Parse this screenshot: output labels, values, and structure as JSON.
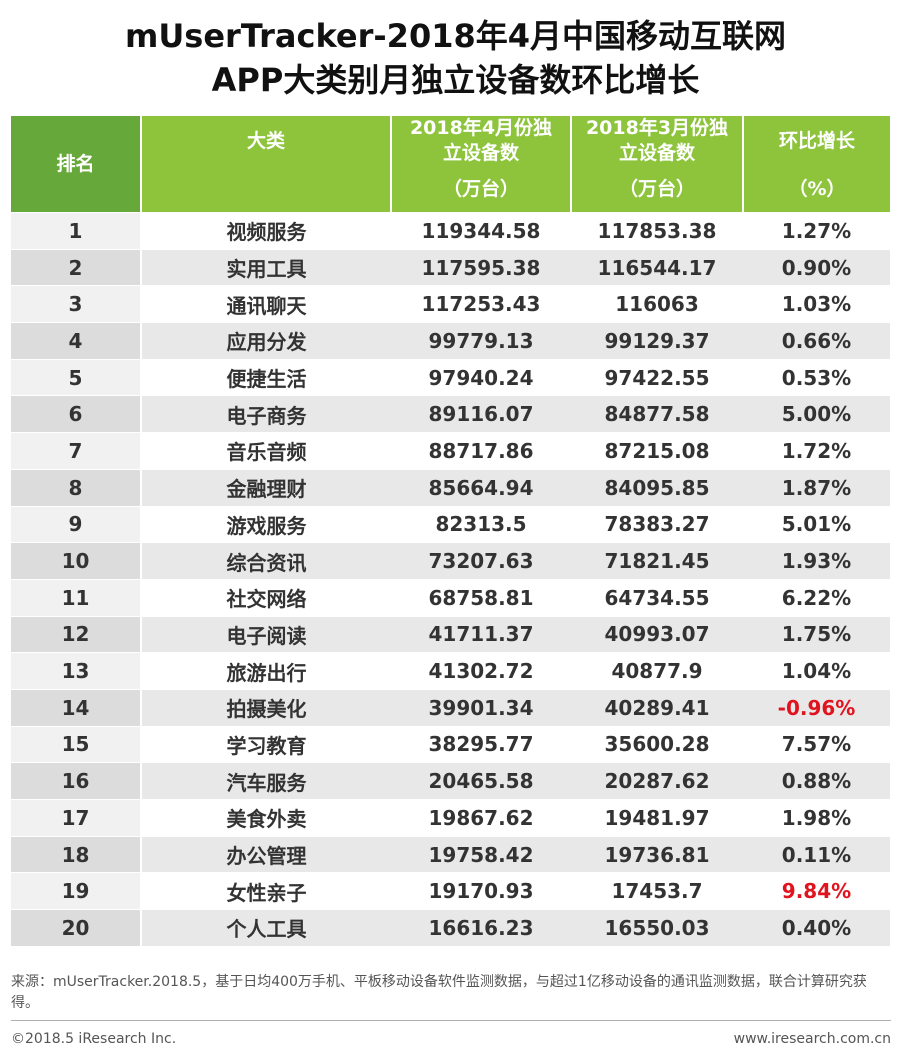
{
  "title_line1": "mUserTracker-2018年4月中国移动互联网",
  "title_line2": "APP大类别月独立设备数环比增长",
  "headers": {
    "rank": "排名",
    "category": "大类",
    "apr_line1": "2018年4月份独",
    "apr_line2": "立设备数",
    "mar_line1": "2018年3月份独",
    "mar_line2": "立设备数",
    "growth": "环比增长",
    "unit_devices_apr": "（万台）",
    "unit_devices_mar": "（万台）",
    "unit_growth": "（%）"
  },
  "rows": [
    {
      "rank": "1",
      "category": "视频服务",
      "apr": "119344.58",
      "mar": "117853.38",
      "growth": "1.27%"
    },
    {
      "rank": "2",
      "category": "实用工具",
      "apr": "117595.38",
      "mar": "116544.17",
      "growth": "0.90%"
    },
    {
      "rank": "3",
      "category": "通讯聊天",
      "apr": "117253.43",
      "mar": "116063",
      "growth": "1.03%"
    },
    {
      "rank": "4",
      "category": "应用分发",
      "apr": "99779.13",
      "mar": "99129.37",
      "growth": "0.66%"
    },
    {
      "rank": "5",
      "category": "便捷生活",
      "apr": "97940.24",
      "mar": "97422.55",
      "growth": "0.53%"
    },
    {
      "rank": "6",
      "category": "电子商务",
      "apr": "89116.07",
      "mar": "84877.58",
      "growth": "5.00%"
    },
    {
      "rank": "7",
      "category": "音乐音频",
      "apr": "88717.86",
      "mar": "87215.08",
      "growth": "1.72%"
    },
    {
      "rank": "8",
      "category": "金融理财",
      "apr": "85664.94",
      "mar": "84095.85",
      "growth": "1.87%"
    },
    {
      "rank": "9",
      "category": "游戏服务",
      "apr": "82313.5",
      "mar": "78383.27",
      "growth": "5.01%"
    },
    {
      "rank": "10",
      "category": "综合资讯",
      "apr": "73207.63",
      "mar": "71821.45",
      "growth": "1.93%"
    },
    {
      "rank": "11",
      "category": "社交网络",
      "apr": "68758.81",
      "mar": "64734.55",
      "growth": "6.22%"
    },
    {
      "rank": "12",
      "category": "电子阅读",
      "apr": "41711.37",
      "mar": "40993.07",
      "growth": "1.75%"
    },
    {
      "rank": "13",
      "category": "旅游出行",
      "apr": "41302.72",
      "mar": "40877.9",
      "growth": "1.04%"
    },
    {
      "rank": "14",
      "category": "拍摄美化",
      "apr": "39901.34",
      "mar": "40289.41",
      "growth": "-0.96%"
    },
    {
      "rank": "15",
      "category": "学习教育",
      "apr": "38295.77",
      "mar": "35600.28",
      "growth": "7.57%"
    },
    {
      "rank": "16",
      "category": "汽车服务",
      "apr": "20465.58",
      "mar": "20287.62",
      "growth": "0.88%"
    },
    {
      "rank": "17",
      "category": "美食外卖",
      "apr": "19867.62",
      "mar": "19481.97",
      "growth": "1.98%"
    },
    {
      "rank": "18",
      "category": "办公管理",
      "apr": "19758.42",
      "mar": "19736.81",
      "growth": "0.11%"
    },
    {
      "rank": "19",
      "category": "女性亲子",
      "apr": "19170.93",
      "mar": "17453.7",
      "growth": "9.84%"
    },
    {
      "rank": "20",
      "category": "个人工具",
      "apr": "16616.23",
      "mar": "16550.03",
      "growth": "0.40%"
    }
  ],
  "highlight_color": "#e0141e",
  "highlighted_ranks": [
    "14",
    "19"
  ],
  "source_note": "来源：mUserTracker.2018.5，基于日均400万手机、平板移动设备软件监测数据，与超过1亿移动设备的通讯监测数据，联合计算研究获得。",
  "copyright": "©2018.5 iResearch Inc.",
  "website": "www.iresearch.com.cn"
}
